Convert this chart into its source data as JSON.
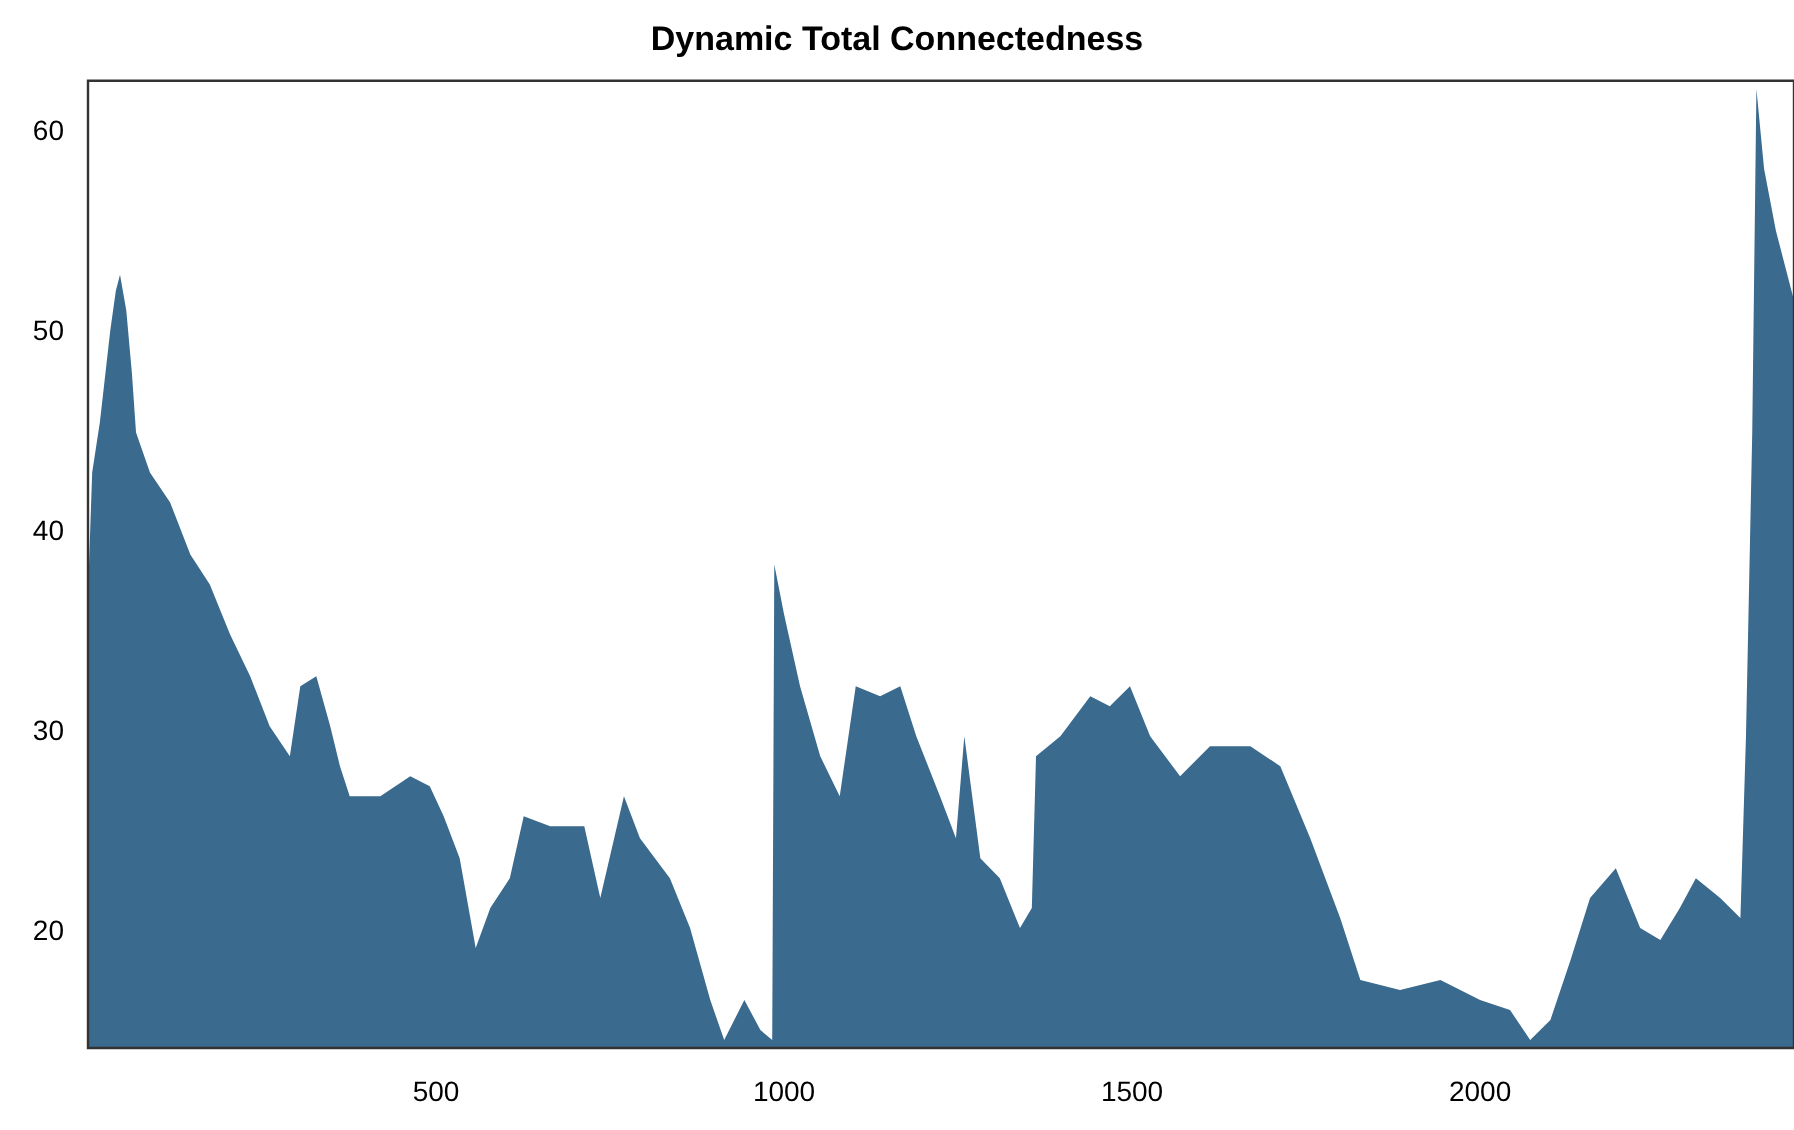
{
  "chart_data": {
    "type": "area",
    "title": "Dynamic Total Connectedness",
    "x": [
      0,
      6,
      17,
      32,
      40,
      46,
      55,
      63,
      69,
      89,
      118,
      147,
      175,
      204,
      233,
      261,
      290,
      305,
      328,
      348,
      362,
      376,
      420,
      463,
      491,
      511,
      534,
      557,
      578,
      606,
      626,
      664,
      713,
      736,
      770,
      793,
      836,
      865,
      894,
      914,
      943,
      966,
      983,
      986,
      1000,
      1023,
      1052,
      1080,
      1103,
      1138,
      1167,
      1190,
      1224,
      1247,
      1259,
      1282,
      1310,
      1339,
      1356,
      1362,
      1397,
      1440,
      1468,
      1497,
      1526,
      1569,
      1612,
      1670,
      1713,
      1756,
      1799,
      1828,
      1885,
      1943,
      2000,
      2043,
      2072,
      2101,
      2130,
      2158,
      2195,
      2230,
      2259,
      2287,
      2310,
      2345,
      2374,
      2382,
      2391,
      2397,
      2408,
      2425,
      2451
    ],
    "series": [
      {
        "color": "#3a6a8e",
        "values": [
          36.9,
          43,
          45.5,
          50.1,
          52.1,
          52.9,
          51.1,
          48,
          45,
          43,
          41.5,
          38.9,
          37.4,
          34.9,
          32.8,
          30.3,
          28.8,
          32.3,
          32.8,
          30.3,
          28.3,
          26.8,
          26.8,
          27.8,
          27.3,
          25.8,
          23.7,
          19.2,
          21.2,
          22.7,
          25.8,
          25.3,
          25.3,
          21.7,
          26.8,
          24.7,
          22.7,
          20.2,
          16.6,
          14.6,
          16.6,
          15.1,
          14.6,
          38.4,
          35.9,
          32.3,
          28.8,
          26.8,
          32.3,
          31.8,
          32.3,
          29.8,
          26.8,
          24.7,
          29.8,
          23.7,
          22.7,
          20.2,
          21.2,
          28.8,
          29.8,
          31.8,
          31.3,
          32.3,
          29.8,
          27.8,
          29.3,
          29.3,
          28.3,
          24.7,
          20.7,
          17.6,
          17.1,
          17.6,
          16.6,
          16.1,
          14.6,
          15.6,
          18.6,
          21.7,
          23.2,
          20.2,
          19.6,
          21.2,
          22.7,
          21.7,
          20.7,
          29.8,
          45,
          62.2,
          58.2,
          55.1,
          51.6
        ]
      }
    ],
    "xlim": [
      0,
      2451
    ],
    "ylim": [
      14.2,
      62.6
    ],
    "xticks": [
      500,
      1000,
      1500,
      2000
    ],
    "yticks": [
      20,
      30,
      40,
      50,
      60
    ],
    "grid": false,
    "legend": false
  }
}
